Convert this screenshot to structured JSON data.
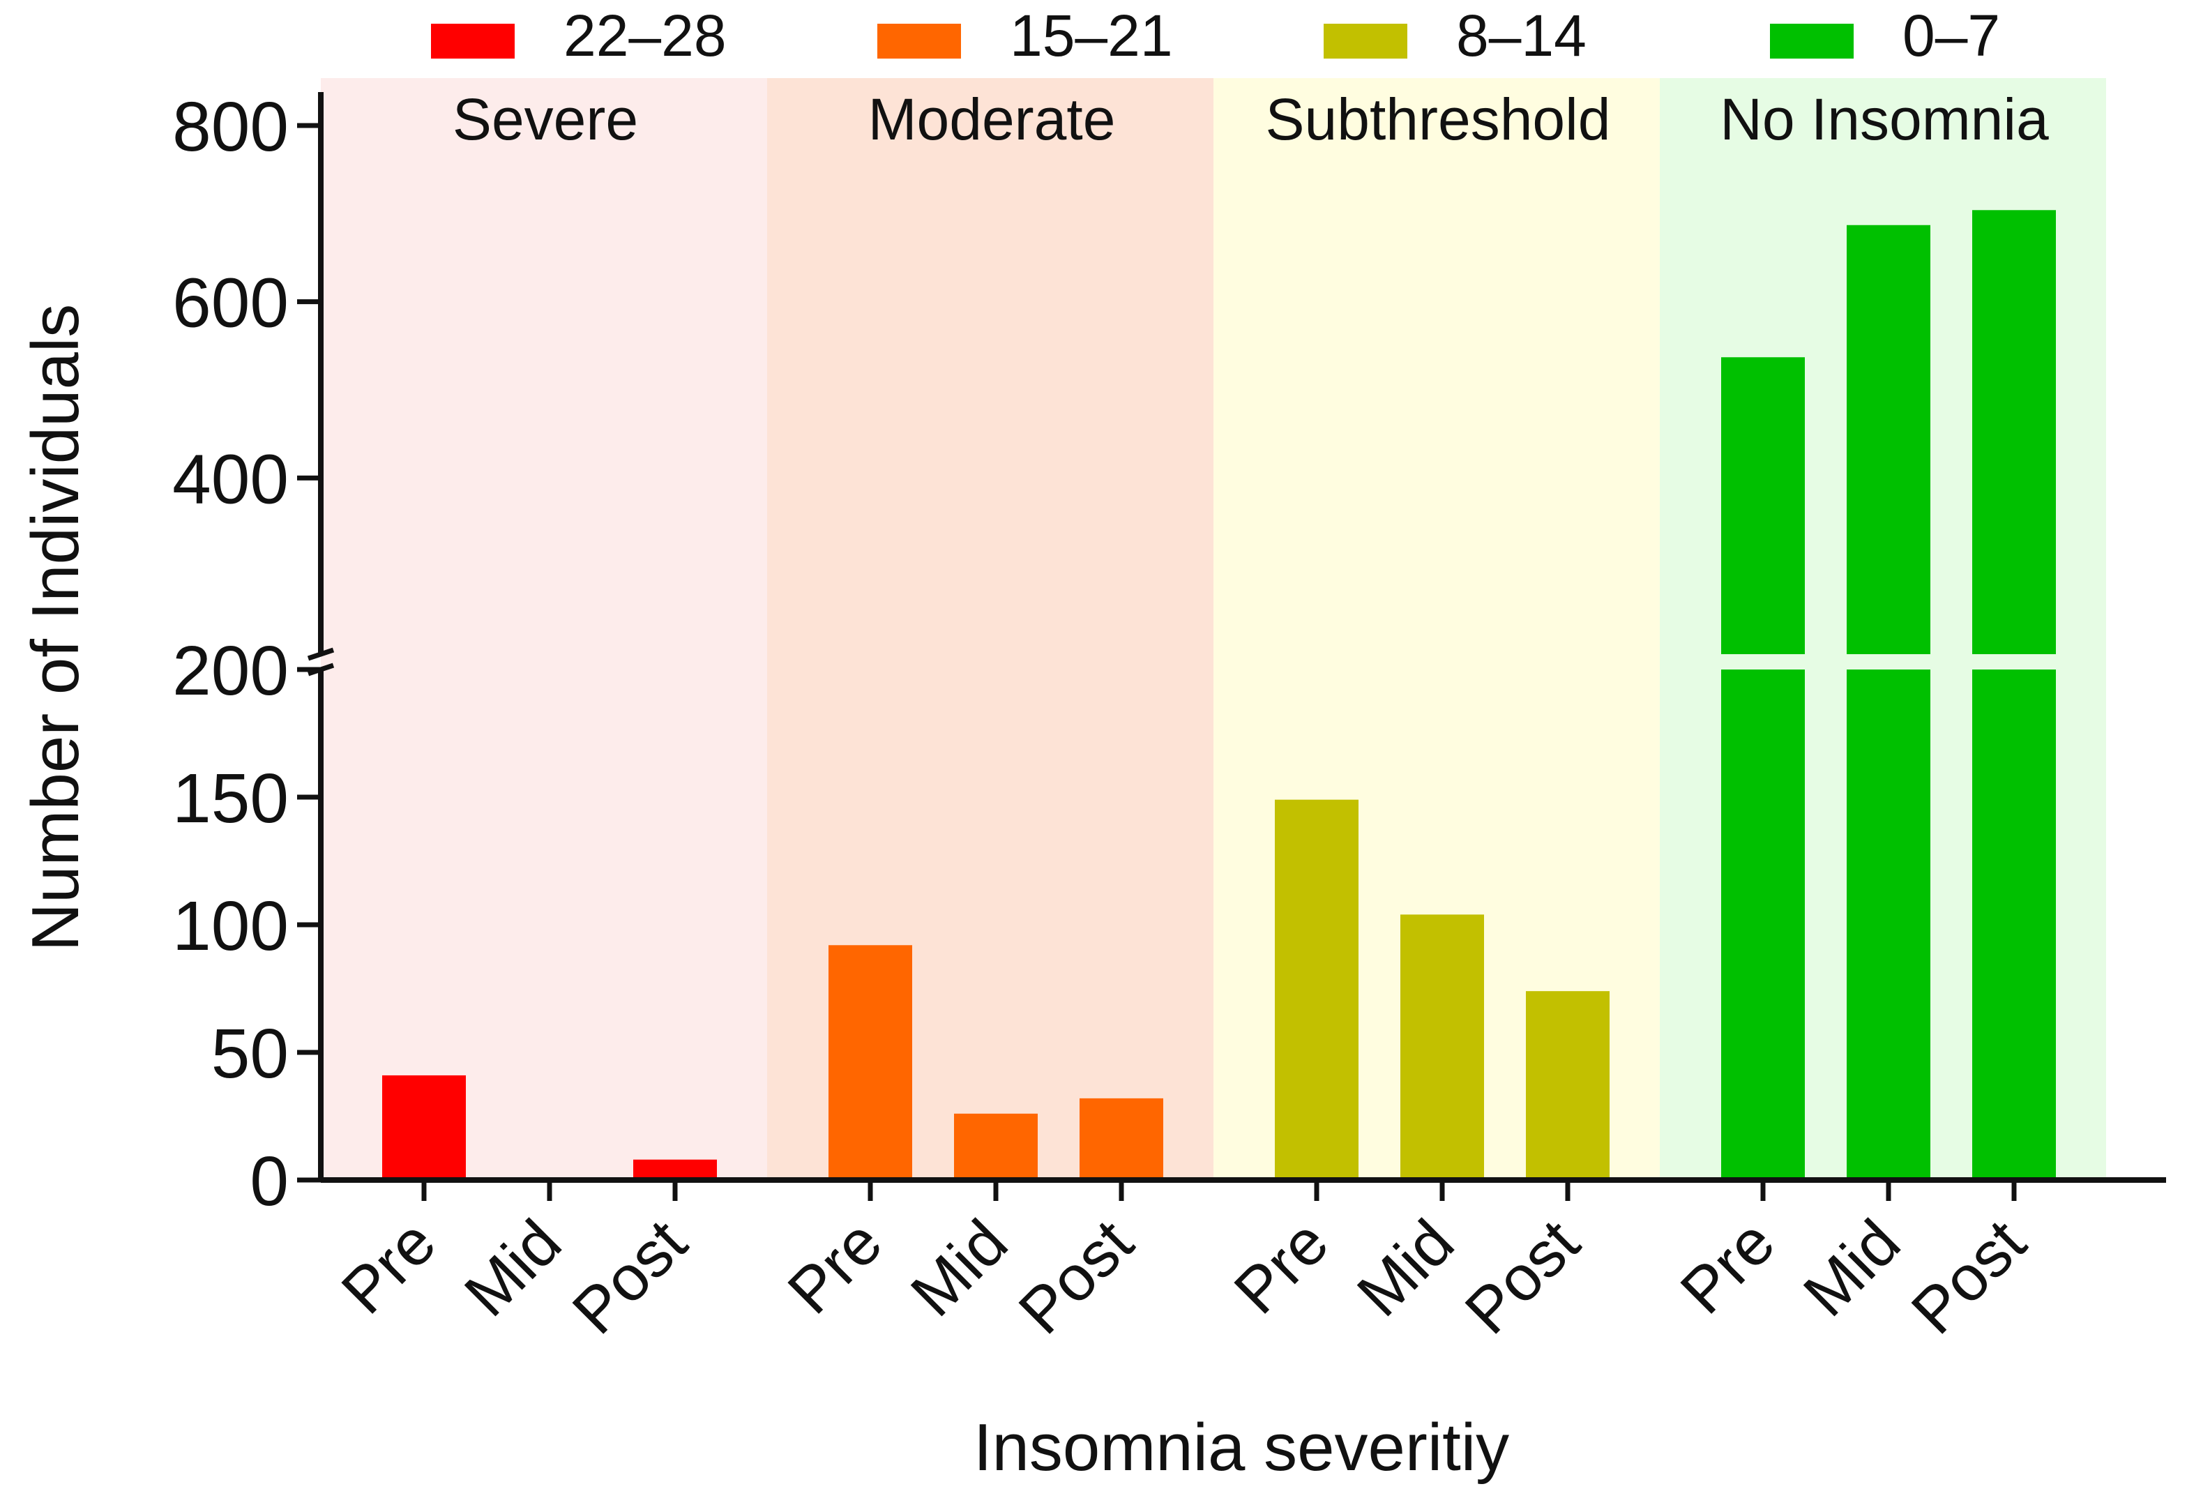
{
  "chart_data": {
    "type": "bar",
    "title": "",
    "xlabel": "Insomnia severitiy",
    "ylabel": "Number of Individuals",
    "legend_placement": "top",
    "legend": [
      {
        "label": "22–28",
        "color": "#ff0000"
      },
      {
        "label": "15–21",
        "color": "#ff6600"
      },
      {
        "label": "8–14",
        "color": "#c2c000"
      },
      {
        "label": "0–7",
        "color": "#00c000"
      }
    ],
    "y_axis": {
      "broken": true,
      "lower_segment": {
        "range": [
          0,
          200
        ],
        "ticks": [
          0,
          50,
          100,
          150,
          200
        ]
      },
      "upper_segment": {
        "range": [
          200,
          900
        ],
        "ticks": [
          400,
          600,
          800
        ]
      }
    },
    "groups": [
      {
        "name": "Severe",
        "legend": "22–28",
        "color": "#ff0000",
        "bg_color": "#fdeceb",
        "categories": [
          "Pre",
          "Mid",
          "Post"
        ],
        "values": [
          41,
          1,
          8
        ]
      },
      {
        "name": "Moderate",
        "legend": "15–21",
        "color": "#ff6600",
        "bg_color": "#fde3d6",
        "categories": [
          "Pre",
          "Mid",
          "Post"
        ],
        "values": [
          92,
          26,
          32
        ]
      },
      {
        "name": "Subthreshold",
        "legend": "8–14",
        "color": "#c2c000",
        "bg_color": "#fffde0",
        "categories": [
          "Pre",
          "Mid",
          "Post"
        ],
        "values": [
          149,
          104,
          74
        ]
      },
      {
        "name": "No Insomnia",
        "legend": "0–7",
        "color": "#00c000",
        "bg_color": "#e6fce4",
        "categories": [
          "Pre",
          "Mid",
          "Post"
        ],
        "values": [
          537,
          687,
          704
        ]
      }
    ]
  }
}
